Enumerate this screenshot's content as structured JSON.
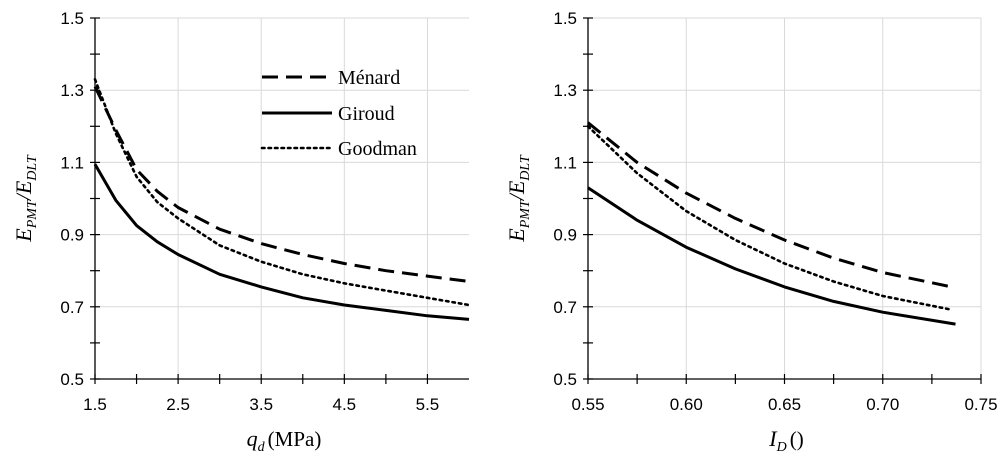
{
  "chart_data": [
    {
      "type": "line",
      "xlabel": {
        "symbol": "q",
        "sub": "d",
        "unit": "(MPa)"
      },
      "ylabel": {
        "n_sym": "E",
        "n_sub": "PMT",
        "slash": "/",
        "d_sym": "E",
        "d_sub": "DLT"
      },
      "xlim": [
        1.5,
        6.0
      ],
      "ylim": [
        0.5,
        1.5
      ],
      "x_ticks": [
        1.5,
        2.5,
        3.5,
        4.5,
        5.5
      ],
      "x_tick_labels": [
        "1.5",
        "2.5",
        "3.5",
        "4.5",
        "5.5"
      ],
      "x_minor_ticks": [
        2.0,
        3.0,
        4.0,
        5.0
      ],
      "y_ticks": [
        0.5,
        0.7,
        0.9,
        1.1,
        1.3,
        1.5
      ],
      "y_tick_labels": [
        "0.5",
        "0.7",
        "0.9",
        "1.1",
        "1.3",
        "1.5"
      ],
      "y_minor_ticks": [
        0.6,
        0.8,
        1.0,
        1.2,
        1.4
      ],
      "grid": true,
      "legend": {
        "placement": "top-right"
      },
      "series": [
        {
          "name": "Ménard",
          "style": "dashed",
          "x": [
            1.5,
            1.75,
            2.0,
            2.25,
            2.5,
            3.0,
            3.5,
            4.0,
            4.5,
            5.0,
            5.5,
            6.0
          ],
          "y": [
            1.31,
            1.19,
            1.08,
            1.02,
            0.975,
            0.915,
            0.875,
            0.845,
            0.82,
            0.8,
            0.785,
            0.77
          ]
        },
        {
          "name": "Giroud",
          "style": "solid",
          "x": [
            1.5,
            1.75,
            2.0,
            2.25,
            2.5,
            3.0,
            3.5,
            4.0,
            4.5,
            5.0,
            5.5,
            6.0
          ],
          "y": [
            1.095,
            0.995,
            0.925,
            0.88,
            0.845,
            0.79,
            0.755,
            0.725,
            0.705,
            0.69,
            0.675,
            0.665
          ]
        },
        {
          "name": "Goodman",
          "style": "dotted",
          "x": [
            1.5,
            1.75,
            2.0,
            2.25,
            2.5,
            3.0,
            3.5,
            4.0,
            4.5,
            5.0,
            5.5,
            6.0
          ],
          "y": [
            1.33,
            1.18,
            1.06,
            0.99,
            0.945,
            0.87,
            0.825,
            0.79,
            0.765,
            0.745,
            0.725,
            0.705
          ]
        }
      ]
    },
    {
      "type": "line",
      "xlabel": {
        "symbol": "I",
        "sub": "D",
        "unit": "()"
      },
      "ylabel": {
        "n_sym": "E",
        "n_sub": "PMT",
        "slash": "/",
        "d_sym": "E",
        "d_sub": "DLT"
      },
      "xlim": [
        0.55,
        0.75
      ],
      "ylim": [
        0.5,
        1.5
      ],
      "x_ticks": [
        0.55,
        0.6,
        0.65,
        0.7,
        0.75
      ],
      "x_tick_labels": [
        "0.55",
        "0.60",
        "0.65",
        "0.70",
        "0.75"
      ],
      "x_minor_ticks": [
        0.575,
        0.625,
        0.675,
        0.725
      ],
      "y_ticks": [
        0.5,
        0.7,
        0.9,
        1.1,
        1.3,
        1.5
      ],
      "y_tick_labels": [
        "0.5",
        "0.7",
        "0.9",
        "1.1",
        "1.3",
        "1.5"
      ],
      "y_minor_ticks": [
        0.6,
        0.8,
        1.0,
        1.2,
        1.4
      ],
      "grid": true,
      "series": [
        {
          "name": "Ménard",
          "style": "dashed",
          "x": [
            0.55,
            0.575,
            0.6,
            0.625,
            0.65,
            0.675,
            0.7,
            0.735
          ],
          "y": [
            1.21,
            1.1,
            1.015,
            0.945,
            0.885,
            0.835,
            0.795,
            0.755
          ]
        },
        {
          "name": "Giroud",
          "style": "solid",
          "x": [
            0.55,
            0.575,
            0.6,
            0.625,
            0.65,
            0.675,
            0.7,
            0.737
          ],
          "y": [
            1.03,
            0.94,
            0.865,
            0.805,
            0.755,
            0.715,
            0.685,
            0.652
          ]
        },
        {
          "name": "Goodman",
          "style": "dotted",
          "x": [
            0.55,
            0.575,
            0.6,
            0.625,
            0.65,
            0.675,
            0.7,
            0.735
          ],
          "y": [
            1.2,
            1.07,
            0.965,
            0.885,
            0.82,
            0.77,
            0.73,
            0.692
          ]
        }
      ]
    }
  ]
}
